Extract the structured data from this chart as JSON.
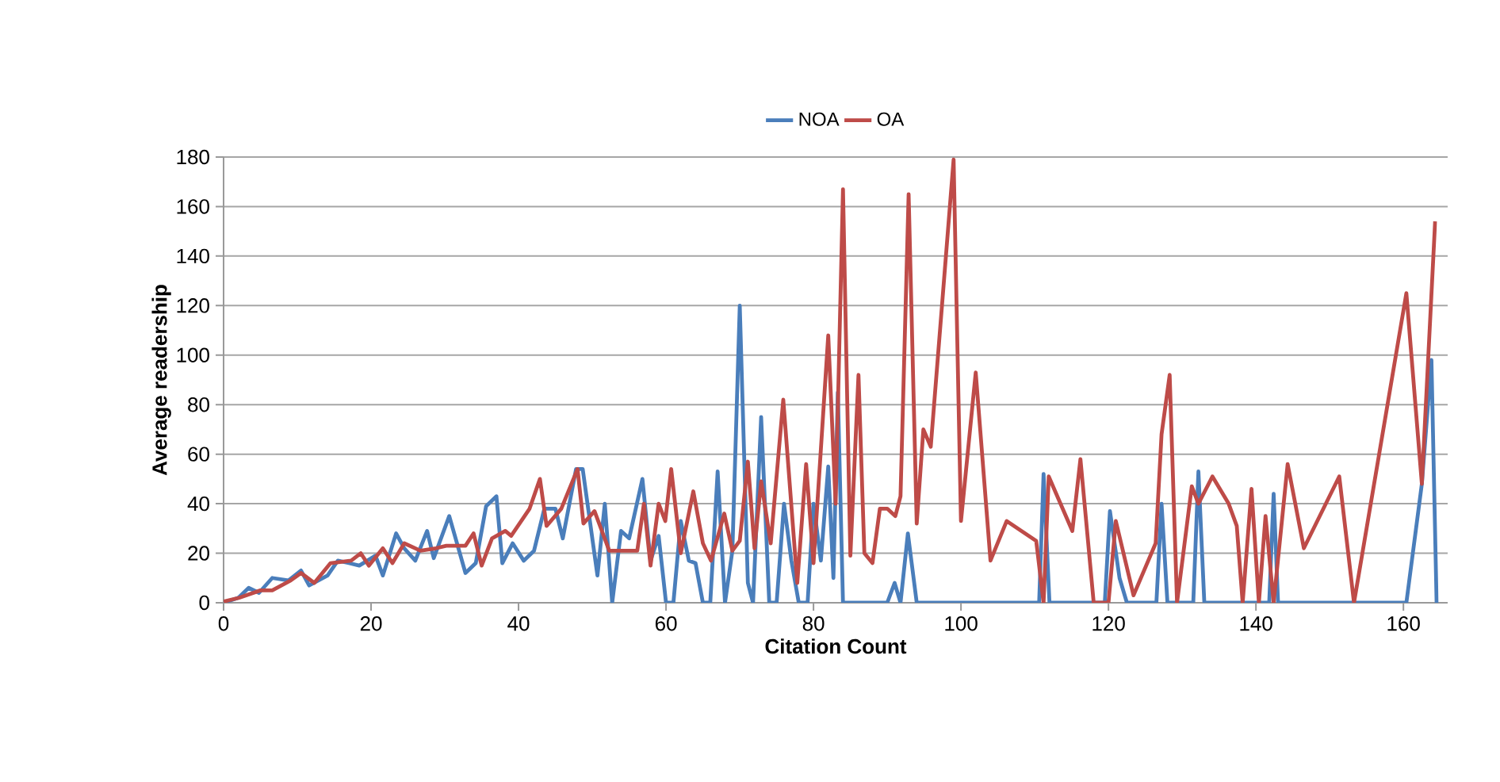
{
  "chart_data": {
    "type": "line",
    "xlabel": "Citation Count",
    "ylabel": "Average readership",
    "xlim": [
      0,
      166
    ],
    "xticks": [
      0,
      20,
      40,
      60,
      80,
      100,
      120,
      140,
      160
    ],
    "ylim": [
      0,
      180
    ],
    "yticks": [
      0,
      20,
      40,
      60,
      80,
      100,
      120,
      140,
      160,
      180
    ],
    "grid": "y",
    "legend": "top",
    "marker": "none",
    "line_style": "solid",
    "series": [
      {
        "name": "NOA",
        "color": "#4a7ebb",
        "x": [
          0,
          2,
          3.4,
          4.8,
          6.6,
          8.8,
          10.5,
          11.6,
          14.1,
          15.5,
          17,
          18.4,
          20.6,
          21.6,
          23.4,
          24.5,
          26,
          27.6,
          28.5,
          30.6,
          32.8,
          34.2,
          35.6,
          37,
          37.8,
          39.2,
          40.7,
          42.1,
          43.5,
          45,
          46,
          47.8,
          48.7,
          50.7,
          51.7,
          52.7,
          53.9,
          55,
          56.8,
          57.9,
          59,
          60,
          61,
          62,
          63.1,
          64,
          65,
          66,
          67,
          68,
          69,
          70,
          71.1,
          71.8,
          72.9,
          74,
          75,
          76,
          77,
          78,
          79.2,
          80,
          81,
          82,
          82.7,
          83.3,
          84,
          90,
          91,
          91.8,
          92.8,
          94,
          110.6,
          111.2,
          112,
          119.5,
          120.2,
          121.5,
          122.5,
          126.5,
          127.2,
          128,
          131.5,
          132.2,
          133,
          141.8,
          142.4,
          143,
          160.4,
          162.5,
          163.8,
          164.5
        ],
        "values": [
          0,
          2,
          6,
          4,
          10,
          9,
          13,
          7,
          11,
          17,
          16,
          15,
          19,
          11,
          28,
          22,
          17,
          29,
          18,
          35,
          12,
          16,
          39,
          43,
          16,
          24,
          17,
          21,
          38,
          38,
          26,
          54,
          54,
          11,
          40,
          0,
          29,
          26,
          50,
          17,
          27,
          0,
          0,
          33,
          17,
          16,
          0,
          0,
          53,
          0,
          21,
          120,
          8,
          0,
          75,
          0,
          0,
          40,
          17,
          0,
          0,
          40,
          17,
          55,
          10,
          85,
          0,
          0,
          8,
          0,
          28,
          0,
          0,
          52,
          0,
          0,
          37,
          10,
          0,
          0,
          40,
          0,
          0,
          53,
          0,
          0,
          44,
          0,
          0,
          48,
          98,
          0
        ]
      },
      {
        "name": "OA",
        "color": "#be4b48",
        "x": [
          0,
          2.1,
          5,
          6.6,
          9.1,
          10.5,
          12.3,
          14.5,
          17.3,
          18.6,
          19.7,
          21.6,
          22.9,
          24.5,
          26.7,
          28.8,
          30.2,
          32.8,
          33.9,
          35,
          36.4,
          38.2,
          39,
          41.5,
          42.9,
          43.8,
          45.8,
          48,
          48.8,
          50.3,
          52.3,
          53.9,
          56.1,
          57,
          57.9,
          59,
          59.9,
          60.7,
          62,
          63.7,
          65,
          66.1,
          67.9,
          69,
          70,
          71.1,
          72,
          72.9,
          74.2,
          75.9,
          77.8,
          79,
          80,
          82,
          83,
          84,
          85,
          86.1,
          86.9,
          88,
          89,
          90,
          91.1,
          91.8,
          92.9,
          94,
          94.9,
          95.9,
          99,
          100,
          102,
          104,
          106.2,
          110.2,
          111.2,
          111.9,
          115.1,
          116.2,
          118,
          120,
          121,
          123.4,
          126.4,
          127.2,
          128.3,
          129.3,
          131.3,
          132.2,
          134.1,
          136.3,
          137.4,
          138.2,
          139.4,
          140.4,
          141.3,
          142.4,
          144.3,
          146.5,
          151.3,
          153.3,
          160.4,
          162.5,
          164.3
        ],
        "values": [
          0.5,
          2,
          5,
          5,
          9,
          12,
          8,
          16,
          17,
          20,
          15,
          22,
          16,
          24,
          21,
          22,
          23,
          23,
          28,
          15,
          26,
          29,
          27,
          38,
          50,
          31,
          38,
          54,
          32,
          37,
          21,
          21,
          21,
          40,
          15,
          40,
          33,
          54,
          20,
          45,
          24,
          17,
          36,
          21,
          25,
          57,
          22,
          49,
          24,
          82,
          8,
          56,
          16,
          108,
          40,
          167,
          19,
          92,
          20,
          16,
          38,
          38,
          35,
          43,
          165,
          32,
          70,
          63,
          179,
          33,
          93,
          17,
          33,
          25,
          0,
          51,
          29,
          58,
          0,
          0,
          33,
          3,
          24,
          68,
          92,
          0,
          47,
          40,
          51,
          40,
          31,
          0,
          46,
          0,
          35,
          0,
          56,
          22,
          51,
          0,
          125,
          48,
          154
        ]
      }
    ]
  }
}
